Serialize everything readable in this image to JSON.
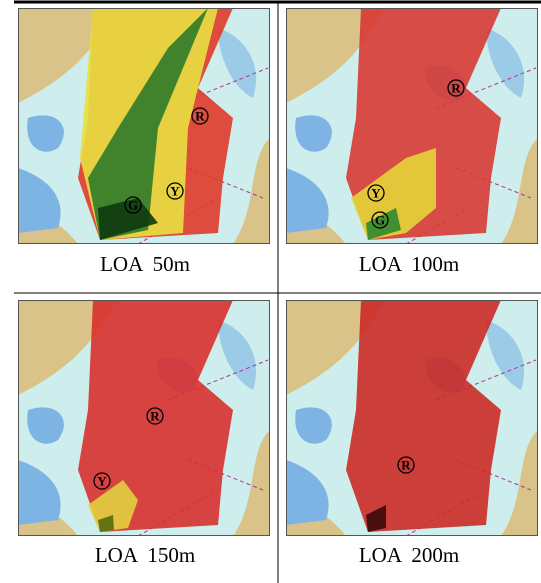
{
  "panels": [
    {
      "caption": "LOA  50m",
      "markers": [
        "R",
        "G",
        "Y"
      ]
    },
    {
      "caption": "LOA  100m",
      "markers": [
        "R",
        "Y",
        "G"
      ]
    },
    {
      "caption": "LOA  150m",
      "markers": [
        "R",
        "Y"
      ]
    },
    {
      "caption": "LOA  200m",
      "markers": [
        "R"
      ]
    }
  ]
}
